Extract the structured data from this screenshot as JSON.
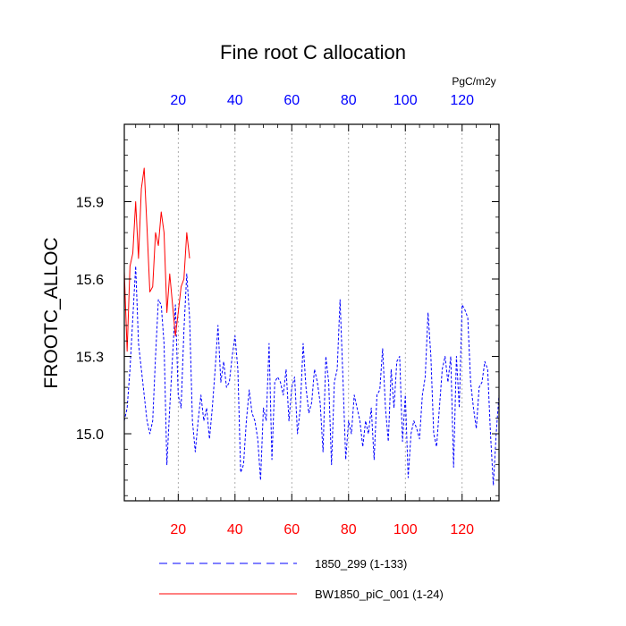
{
  "chart_data": {
    "type": "line",
    "title": "Fine root C allocation",
    "ylabel": "FROOTC_ALLOC",
    "units": "PgC/m2y",
    "xlim": [
      1,
      133
    ],
    "ylim": [
      14.74,
      16.2
    ],
    "yticks": [
      15.0,
      15.3,
      15.6,
      15.9
    ],
    "ytick_labels": [
      "15.0",
      "15.3",
      "15.6",
      "15.9"
    ],
    "xticks": [
      20,
      40,
      60,
      80,
      100,
      120
    ],
    "xtick_labels": [
      "20",
      "40",
      "60",
      "80",
      "100",
      "120"
    ],
    "colors": {
      "series1": "#0000ff",
      "series2": "#ff0000",
      "bottom_ticks": "#ff0000",
      "top_ticks": "#0000ff"
    },
    "grid": "vertical-dotted",
    "legend_position": "bottom",
    "series": [
      {
        "name": "1850_299 (1-133)",
        "style": "dashed",
        "x_start": 1,
        "values": [
          15.05,
          15.1,
          15.25,
          15.45,
          15.65,
          15.35,
          15.25,
          15.15,
          15.05,
          15.0,
          15.05,
          15.3,
          15.52,
          15.5,
          15.35,
          14.88,
          15.1,
          15.3,
          15.5,
          15.15,
          15.1,
          15.4,
          15.62,
          15.45,
          15.05,
          14.93,
          15.05,
          15.15,
          15.05,
          15.1,
          14.98,
          15.1,
          15.25,
          15.42,
          15.2,
          15.28,
          15.18,
          15.2,
          15.3,
          15.38,
          15.25,
          14.85,
          14.88,
          15.05,
          15.17,
          15.08,
          15.05,
          14.98,
          14.82,
          15.1,
          15.05,
          15.35,
          14.9,
          15.2,
          15.22,
          15.2,
          15.15,
          15.25,
          15.05,
          15.18,
          15.22,
          15.0,
          15.1,
          15.35,
          15.18,
          15.08,
          15.12,
          15.25,
          15.2,
          15.12,
          14.93,
          15.3,
          15.2,
          14.88,
          15.2,
          15.25,
          15.52,
          15.22,
          14.9,
          15.05,
          15.0,
          15.15,
          15.1,
          15.05,
          14.95,
          15.05,
          15.0,
          15.1,
          14.9,
          15.15,
          15.17,
          15.33,
          15.1,
          14.97,
          15.25,
          15.1,
          15.28,
          15.3,
          14.97,
          15.15,
          14.83,
          15.0,
          15.05,
          15.02,
          14.98,
          15.15,
          15.22,
          15.47,
          15.3,
          15.0,
          14.95,
          15.1,
          15.25,
          15.3,
          15.2,
          15.3,
          14.87,
          15.3,
          15.1,
          15.5,
          15.48,
          15.45,
          15.2,
          15.1,
          15.02,
          15.18,
          15.2,
          15.28,
          15.25,
          15.0,
          14.8,
          15.0,
          15.15
        ]
      },
      {
        "name": "BW1850_piC_001 (1-24)",
        "style": "solid",
        "x_start": 1,
        "values": [
          15.63,
          15.32,
          15.65,
          15.7,
          15.9,
          15.68,
          15.95,
          16.03,
          15.8,
          15.55,
          15.57,
          15.78,
          15.73,
          15.86,
          15.78,
          15.47,
          15.62,
          15.5,
          15.38,
          15.47,
          15.57,
          15.6,
          15.78,
          15.68
        ]
      }
    ]
  }
}
